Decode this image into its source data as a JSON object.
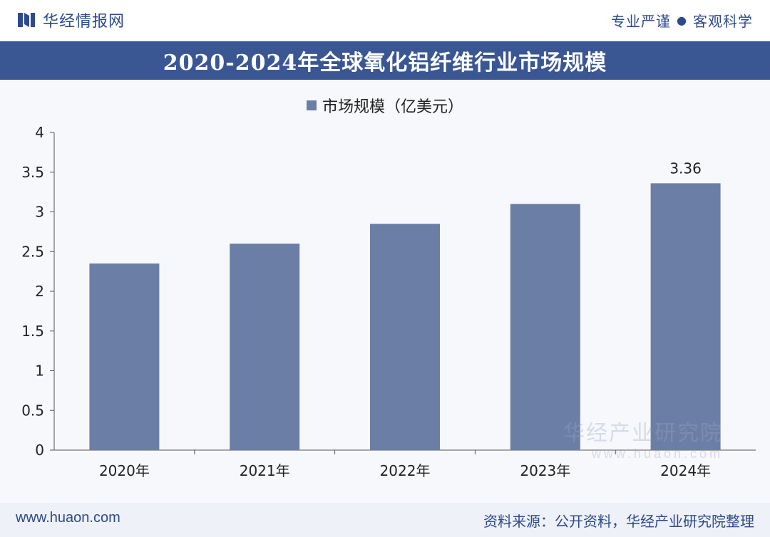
{
  "header": {
    "brand_name": "华经情报网",
    "slogan_left": "专业严谨",
    "slogan_dot": "●",
    "slogan_right": "客观科学"
  },
  "chart_data": {
    "type": "bar",
    "title": "2020-2024年全球氧化铝纤维行业市场规模",
    "categories": [
      "2020年",
      "2021年",
      "2022年",
      "2023年",
      "2024年"
    ],
    "series": [
      {
        "name": "市场规模（亿美元）",
        "values": [
          2.35,
          2.6,
          2.85,
          3.1,
          3.36
        ]
      }
    ],
    "data_labels": [
      "",
      "",
      "",
      "",
      "3.36"
    ],
    "y_ticks": [
      "0",
      "0.5",
      "1",
      "1.5",
      "2",
      "2.5",
      "3",
      "3.5",
      "4"
    ],
    "ylim": [
      0,
      4
    ],
    "xlabel": "",
    "ylabel": "",
    "legend_position": "top-center",
    "grid": false,
    "bar_color": "#6b7fa6"
  },
  "watermark": {
    "name": "华经产业研究院",
    "url": "www.huaon.com"
  },
  "footer": {
    "site": "www.huaon.com",
    "source": "资料来源：公开资料，华经产业研究院整理"
  }
}
